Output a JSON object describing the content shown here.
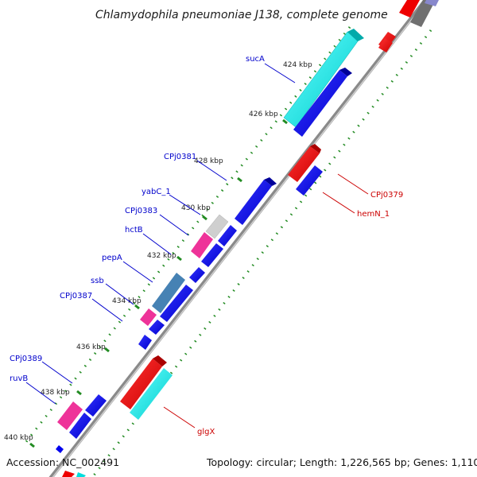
{
  "title": "Chlamydophila pneumoniae J138, complete genome",
  "footer": {
    "accession": "Accession: NC_002491",
    "summary": "Topology: circular; Length: 1,226,565 bp; Genes: 1,110"
  },
  "colors": {
    "forward_gene": "#0000ee",
    "reverse_gene": "#ee0000",
    "rRNA_like": "#00dddd",
    "pink_gene": "#ee3399",
    "grey_gene": "#cccccc",
    "steel_gene": "#4682b4",
    "backbone": "#888888",
    "tick_marks": "#228b22",
    "label_forward": "#0000cc",
    "label_reverse": "#cc0000"
  },
  "ticks": [
    "424 kbp",
    "426 kbp",
    "428 kbp",
    "430 kbp",
    "432 kbp",
    "434 kbp",
    "436 kbp",
    "438 kbp",
    "440 kbp"
  ],
  "gene_labels_forward": [
    "sucA",
    "CPj0381",
    "yabC_1",
    "CPj0383",
    "hctB",
    "pepA",
    "ssb",
    "CPj0387",
    "CPj0389",
    "ruvB"
  ],
  "gene_labels_reverse": [
    "CPj0379",
    "hemN_1",
    "glgX"
  ]
}
